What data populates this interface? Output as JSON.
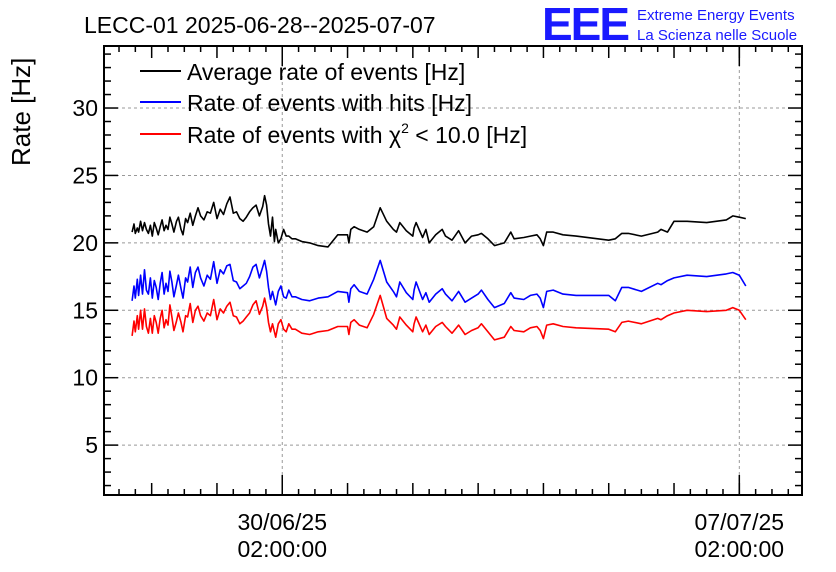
{
  "title": "LECC-01 2025-06-28--2025-07-07",
  "logo": {
    "letters": "EEE",
    "line1": "Extreme Energy Events",
    "line2": "La Scienza nelle Scuole"
  },
  "chart_data": {
    "type": "line",
    "title": "LECC-01 2025-06-28--2025-07-07",
    "xlabel": "",
    "ylabel": "Rate [Hz]",
    "x_unit": "day offset from 2025-06-30 02:00:00",
    "xlim": [
      -2.73,
      7.96
    ],
    "ylim": [
      1.3,
      34.6
    ],
    "y_ticks": [
      5,
      10,
      15,
      20,
      25,
      30
    ],
    "x_ticks": [
      {
        "x": 0,
        "line1": "30/06/25",
        "line2": "02:00:00"
      },
      {
        "x": 7,
        "line1": "07/07/25",
        "line2": "02:00:00"
      }
    ],
    "grid": true,
    "legend_position": "top-left",
    "legend": [
      {
        "label": "Average rate of events [Hz]",
        "color": "#000000"
      },
      {
        "label": "Rate of events with hits [Hz]",
        "color": "#0000ff"
      },
      {
        "label": "Rate of events with χ",
        "sup": "2",
        "label_suffix": " < 10.0 [Hz]",
        "color": "#ff0000"
      }
    ],
    "series": [
      {
        "name": "Average rate of events [Hz]",
        "color": "#000000",
        "x": [
          -2.3,
          -2.27,
          -2.25,
          -2.22,
          -2.2,
          -2.17,
          -2.14,
          -2.11,
          -2.08,
          -2.05,
          -2.02,
          -1.99,
          -1.96,
          -1.93,
          -1.9,
          -1.87,
          -1.84,
          -1.81,
          -1.78,
          -1.75,
          -1.72,
          -1.69,
          -1.66,
          -1.62,
          -1.59,
          -1.55,
          -1.52,
          -1.48,
          -1.45,
          -1.41,
          -1.37,
          -1.33,
          -1.29,
          -1.25,
          -1.2,
          -1.15,
          -1.1,
          -1.05,
          -1.0,
          -0.95,
          -0.9,
          -0.85,
          -0.8,
          -0.75,
          -0.7,
          -0.65,
          -0.6,
          -0.55,
          -0.5,
          -0.45,
          -0.4,
          -0.35,
          -0.3,
          -0.27,
          -0.24,
          -0.21,
          -0.18,
          -0.15,
          -0.12,
          -0.1,
          -0.06,
          -0.02,
          0.02,
          0.06,
          0.1,
          0.15,
          0.2,
          0.3,
          0.42,
          0.55,
          0.7,
          0.85,
          1.0,
          1.02,
          1.05,
          1.1,
          1.18,
          1.3,
          1.4,
          1.5,
          1.6,
          1.7,
          1.75,
          1.8,
          1.9,
          2.0,
          2.02,
          2.05,
          2.15,
          2.2,
          2.25,
          2.35,
          2.45,
          2.5,
          2.6,
          2.7,
          2.8,
          2.9,
          3.0,
          3.05,
          3.15,
          3.25,
          3.4,
          3.5,
          3.55,
          3.7,
          3.8,
          3.9,
          3.95,
          4.0,
          4.05,
          4.15,
          4.3,
          4.5,
          5.0,
          5.1,
          5.2,
          5.3,
          5.5,
          5.75,
          5.8,
          5.9,
          6.0,
          6.2,
          6.5,
          6.8,
          6.9,
          7.0,
          7.1
        ],
        "y": [
          20.8,
          21.4,
          20.7,
          21.1,
          20.8,
          21.6,
          20.9,
          21.5,
          21.0,
          20.7,
          21.3,
          20.5,
          21.5,
          21.1,
          20.6,
          21.2,
          21.7,
          20.9,
          21.3,
          21.0,
          21.9,
          21.4,
          20.8,
          21.6,
          21.9,
          21.0,
          20.6,
          21.8,
          21.5,
          22.2,
          21.3,
          22.0,
          22.6,
          22.0,
          21.7,
          22.3,
          22.2,
          23.0,
          21.8,
          22.5,
          22.1,
          22.9,
          23.4,
          22.2,
          22.3,
          21.8,
          21.6,
          21.9,
          22.3,
          22.6,
          22.8,
          22.0,
          22.7,
          23.5,
          22.8,
          21.4,
          20.5,
          21.9,
          20.1,
          21.0,
          20.0,
          20.3,
          21.0,
          20.5,
          20.5,
          20.3,
          20.3,
          20.1,
          20.0,
          19.8,
          19.7,
          20.6,
          20.6,
          20.0,
          21.0,
          21.2,
          21.0,
          20.8,
          21.2,
          22.6,
          21.6,
          21.0,
          20.8,
          21.5,
          20.9,
          20.5,
          21.1,
          21.5,
          20.4,
          21.0,
          20.0,
          20.6,
          21.0,
          20.5,
          20.2,
          20.9,
          20.0,
          20.5,
          20.6,
          20.7,
          20.3,
          19.8,
          20.0,
          20.8,
          20.3,
          20.4,
          20.5,
          20.6,
          20.3,
          19.8,
          20.8,
          20.8,
          20.6,
          20.5,
          20.2,
          20.3,
          20.7,
          20.7,
          20.5,
          20.8,
          21.0,
          20.8,
          21.6,
          21.6,
          21.5,
          21.7,
          22.0,
          21.9,
          21.8
        ]
      },
      {
        "name": "Rate of events with hits [Hz]",
        "color": "#0000ff",
        "x": [
          -2.3,
          -2.27,
          -2.25,
          -2.22,
          -2.2,
          -2.17,
          -2.14,
          -2.11,
          -2.08,
          -2.05,
          -2.02,
          -1.99,
          -1.96,
          -1.93,
          -1.9,
          -1.87,
          -1.84,
          -1.81,
          -1.78,
          -1.75,
          -1.72,
          -1.69,
          -1.66,
          -1.62,
          -1.59,
          -1.55,
          -1.52,
          -1.48,
          -1.45,
          -1.41,
          -1.37,
          -1.33,
          -1.29,
          -1.25,
          -1.2,
          -1.15,
          -1.1,
          -1.05,
          -1.0,
          -0.95,
          -0.9,
          -0.85,
          -0.8,
          -0.75,
          -0.7,
          -0.65,
          -0.6,
          -0.55,
          -0.5,
          -0.45,
          -0.4,
          -0.35,
          -0.3,
          -0.27,
          -0.24,
          -0.21,
          -0.18,
          -0.15,
          -0.12,
          -0.1,
          -0.06,
          -0.02,
          0.02,
          0.06,
          0.1,
          0.15,
          0.2,
          0.3,
          0.42,
          0.55,
          0.7,
          0.85,
          1.0,
          1.02,
          1.05,
          1.1,
          1.18,
          1.3,
          1.4,
          1.5,
          1.6,
          1.7,
          1.75,
          1.8,
          1.9,
          2.0,
          2.02,
          2.05,
          2.15,
          2.2,
          2.25,
          2.35,
          2.45,
          2.5,
          2.6,
          2.7,
          2.8,
          2.9,
          3.0,
          3.05,
          3.15,
          3.25,
          3.4,
          3.5,
          3.55,
          3.7,
          3.8,
          3.9,
          3.95,
          4.0,
          4.05,
          4.15,
          4.3,
          4.5,
          5.0,
          5.1,
          5.2,
          5.3,
          5.5,
          5.75,
          5.8,
          5.9,
          6.0,
          6.2,
          6.5,
          6.8,
          6.9,
          7.0,
          7.1
        ],
        "y": [
          15.7,
          16.8,
          15.9,
          17.3,
          16.1,
          17.6,
          16.2,
          18.0,
          16.5,
          16.2,
          17.4,
          15.9,
          17.2,
          16.7,
          15.8,
          17.0,
          17.8,
          16.2,
          17.0,
          16.4,
          17.9,
          17.1,
          16.0,
          16.9,
          17.6,
          16.6,
          15.9,
          17.4,
          17.1,
          18.2,
          16.7,
          17.8,
          18.2,
          17.4,
          16.8,
          17.6,
          17.3,
          18.6,
          17.0,
          18.0,
          17.7,
          18.3,
          18.4,
          17.2,
          17.1,
          16.6,
          16.8,
          17.0,
          17.5,
          18.2,
          18.4,
          17.4,
          18.2,
          18.7,
          17.9,
          16.7,
          15.8,
          16.4,
          15.8,
          15.4,
          16.4,
          16.8,
          16.0,
          15.9,
          16.5,
          16.0,
          16.0,
          15.8,
          15.7,
          15.9,
          16.0,
          16.4,
          16.3,
          15.6,
          16.6,
          16.9,
          16.4,
          16.2,
          17.3,
          18.7,
          17.1,
          16.4,
          16.0,
          17.1,
          16.3,
          15.8,
          16.5,
          17.1,
          15.8,
          16.3,
          15.6,
          16.2,
          16.6,
          16.2,
          15.7,
          16.4,
          15.6,
          15.9,
          16.2,
          16.5,
          15.8,
          15.2,
          15.5,
          16.3,
          15.9,
          15.8,
          16.1,
          16.2,
          15.9,
          15.2,
          16.4,
          16.5,
          16.2,
          16.1,
          16.1,
          15.7,
          16.7,
          16.7,
          16.4,
          17.0,
          16.9,
          17.2,
          17.4,
          17.6,
          17.5,
          17.7,
          17.8,
          17.6,
          16.8
        ]
      },
      {
        "name": "Rate of events with χ² < 10.0 [Hz]",
        "color": "#ff0000",
        "x": [
          -2.3,
          -2.27,
          -2.25,
          -2.22,
          -2.2,
          -2.17,
          -2.14,
          -2.11,
          -2.08,
          -2.05,
          -2.02,
          -1.99,
          -1.96,
          -1.93,
          -1.9,
          -1.87,
          -1.84,
          -1.81,
          -1.78,
          -1.75,
          -1.72,
          -1.69,
          -1.66,
          -1.62,
          -1.59,
          -1.55,
          -1.52,
          -1.48,
          -1.45,
          -1.41,
          -1.37,
          -1.33,
          -1.29,
          -1.25,
          -1.2,
          -1.15,
          -1.1,
          -1.05,
          -1.0,
          -0.95,
          -0.9,
          -0.85,
          -0.8,
          -0.75,
          -0.7,
          -0.65,
          -0.6,
          -0.55,
          -0.5,
          -0.45,
          -0.4,
          -0.35,
          -0.3,
          -0.27,
          -0.24,
          -0.21,
          -0.18,
          -0.15,
          -0.12,
          -0.1,
          -0.06,
          -0.02,
          0.02,
          0.06,
          0.1,
          0.15,
          0.2,
          0.3,
          0.42,
          0.55,
          0.7,
          0.85,
          1.0,
          1.02,
          1.05,
          1.1,
          1.18,
          1.3,
          1.4,
          1.5,
          1.6,
          1.7,
          1.75,
          1.8,
          1.9,
          2.0,
          2.02,
          2.05,
          2.15,
          2.2,
          2.25,
          2.35,
          2.45,
          2.5,
          2.6,
          2.7,
          2.8,
          2.9,
          3.0,
          3.05,
          3.15,
          3.25,
          3.4,
          3.5,
          3.55,
          3.7,
          3.8,
          3.9,
          3.95,
          4.0,
          4.05,
          4.15,
          4.3,
          4.5,
          5.0,
          5.1,
          5.2,
          5.3,
          5.5,
          5.75,
          5.8,
          5.9,
          6.0,
          6.2,
          6.5,
          6.8,
          6.9,
          7.0,
          7.1
        ],
        "y": [
          13.1,
          14.2,
          13.4,
          14.6,
          13.6,
          15.0,
          13.6,
          15.1,
          13.8,
          13.3,
          14.4,
          13.3,
          14.6,
          14.1,
          13.3,
          14.4,
          15.0,
          13.7,
          14.3,
          13.9,
          15.4,
          14.5,
          13.5,
          14.2,
          14.8,
          14.1,
          13.4,
          14.6,
          14.5,
          15.5,
          14.1,
          15.0,
          15.3,
          14.6,
          14.2,
          14.8,
          14.6,
          15.8,
          14.3,
          15.1,
          14.8,
          15.3,
          15.6,
          14.6,
          14.5,
          14.0,
          14.2,
          14.5,
          14.8,
          15.4,
          15.7,
          14.7,
          15.3,
          15.9,
          15.2,
          14.1,
          13.4,
          14.0,
          13.4,
          13.0,
          14.0,
          14.3,
          13.6,
          13.4,
          14.0,
          13.6,
          13.6,
          13.3,
          13.2,
          13.4,
          13.5,
          13.8,
          13.8,
          13.2,
          14.1,
          14.3,
          13.9,
          13.7,
          14.7,
          16.1,
          14.4,
          13.9,
          13.6,
          14.5,
          13.9,
          13.4,
          14.0,
          14.5,
          13.4,
          13.9,
          13.2,
          13.8,
          14.1,
          13.8,
          13.3,
          13.9,
          13.2,
          13.5,
          13.7,
          14.0,
          13.4,
          12.8,
          13.0,
          13.8,
          13.5,
          13.4,
          13.7,
          13.8,
          13.5,
          12.9,
          13.9,
          14.0,
          13.8,
          13.7,
          13.6,
          13.4,
          14.1,
          14.2,
          14.0,
          14.4,
          14.3,
          14.6,
          14.8,
          15.0,
          14.9,
          15.0,
          15.2,
          15.0,
          14.3
        ]
      }
    ]
  }
}
